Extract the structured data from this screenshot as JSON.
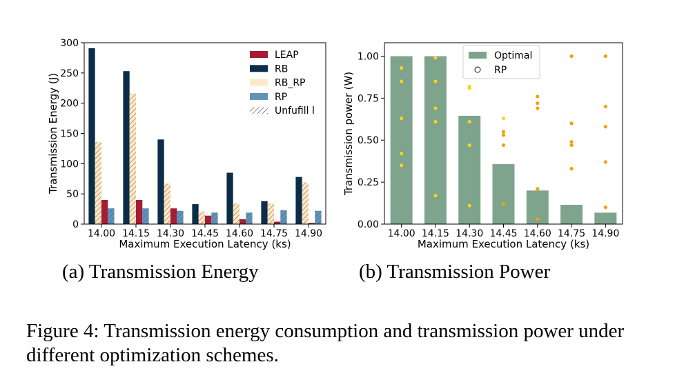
{
  "caption": "Figure 4: Transmission energy consumption and transmission power under different optimization schemes.",
  "subcaptions": {
    "a": "(a)  Transmission Energy",
    "b": "(b)  Transmission Power"
  },
  "colors": {
    "LEAP": "#a51c36",
    "RB": "#0b2d48",
    "RB_RP": "#fde9c9",
    "RP": "#6193b7",
    "hatch": "#a57a42",
    "Optimal": "#7ea48d",
    "dot_light": "#ffd21c",
    "dot_dark": "#f6a000"
  },
  "chart_data": [
    {
      "type": "bar",
      "xlabel": "Maximum Execution Latency (ks)",
      "ylabel": "Transmission Energy (J)",
      "ylim": [
        0,
        300
      ],
      "yticks": [
        0,
        50,
        100,
        150,
        200,
        250,
        300
      ],
      "categories": [
        "14.00",
        "14.15",
        "14.30",
        "14.45",
        "14.60",
        "14.75",
        "14.90"
      ],
      "series": [
        {
          "name": "LEAP",
          "values": [
            40,
            40,
            26,
            14,
            8,
            4,
            2
          ]
        },
        {
          "name": "RB",
          "values": [
            291,
            253,
            140,
            33,
            85,
            38,
            78
          ]
        },
        {
          "name": "RB_RP",
          "values": [
            136,
            216,
            67,
            21,
            34,
            34,
            69
          ]
        },
        {
          "name": "RP",
          "values": [
            26,
            26,
            22,
            19,
            19,
            23,
            22
          ]
        }
      ],
      "legend_extra": "Unfufill l",
      "legend": "top-right",
      "grid": false
    },
    {
      "type": "bar",
      "xlabel": "Maximum Execution Latency (ks)",
      "ylabel": "Transmission power (W)",
      "ylim": [
        0,
        1.08
      ],
      "yticks": [
        "0.00",
        "0.25",
        "0.50",
        "0.75",
        "1.00"
      ],
      "categories": [
        "14.00",
        "14.15",
        "14.30",
        "14.45",
        "14.60",
        "14.75",
        "14.90"
      ],
      "series": [
        {
          "name": "Optimal",
          "values": [
            1.0,
            1.0,
            0.645,
            0.357,
            0.2,
            0.115,
            0.068
          ]
        }
      ],
      "scatter": {
        "name": "RP",
        "points": [
          [
            [
              0.93,
              "l"
            ],
            [
              0.85,
              "l"
            ],
            [
              0.63,
              "l"
            ],
            [
              0.42,
              "l"
            ],
            [
              0.35,
              "l"
            ]
          ],
          [
            [
              0.99,
              "l"
            ],
            [
              0.85,
              "l"
            ],
            [
              0.69,
              "l"
            ],
            [
              0.61,
              "l"
            ],
            [
              0.17,
              "l"
            ]
          ],
          [
            [
              0.82,
              "l"
            ],
            [
              0.81,
              "l"
            ],
            [
              0.61,
              "l"
            ],
            [
              0.47,
              "l"
            ],
            [
              0.11,
              "l"
            ]
          ],
          [
            [
              0.63,
              "l"
            ],
            [
              0.55,
              "d"
            ],
            [
              0.53,
              "d"
            ],
            [
              0.47,
              "d"
            ],
            [
              0.12,
              "d"
            ]
          ],
          [
            [
              0.76,
              "d"
            ],
            [
              0.72,
              "d"
            ],
            [
              0.69,
              "d"
            ],
            [
              0.21,
              "d"
            ],
            [
              0.03,
              "d"
            ]
          ],
          [
            [
              1.0,
              "d"
            ],
            [
              0.6,
              "d"
            ],
            [
              0.49,
              "d"
            ],
            [
              0.47,
              "d"
            ],
            [
              0.33,
              "d"
            ]
          ],
          [
            [
              1.0,
              "d"
            ],
            [
              0.7,
              "d"
            ],
            [
              0.58,
              "d"
            ],
            [
              0.37,
              "d"
            ],
            [
              0.1,
              "d"
            ]
          ]
        ]
      },
      "legend": "top-center",
      "grid": false
    }
  ]
}
